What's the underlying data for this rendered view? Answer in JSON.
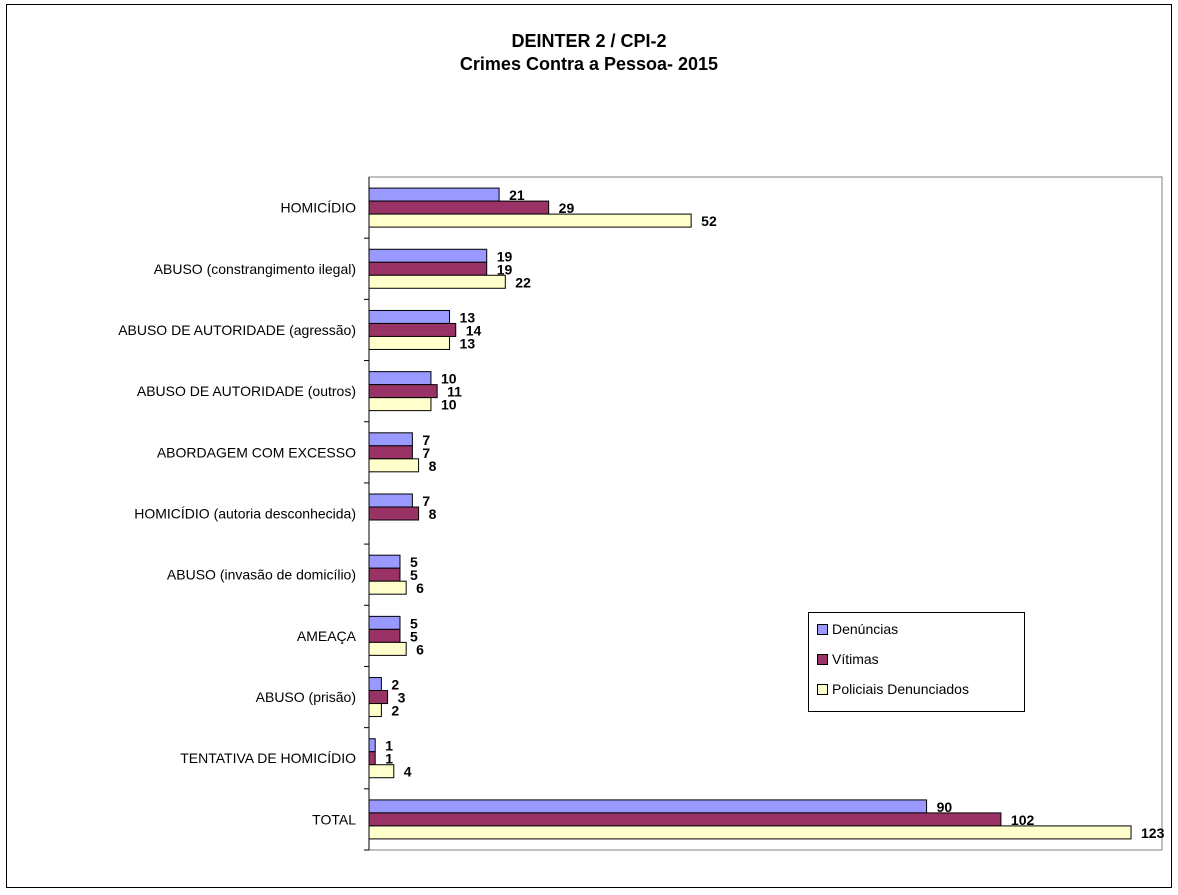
{
  "chart_data": {
    "type": "bar",
    "orientation": "horizontal",
    "title": "DEINTER 2 / CPI-2",
    "subtitle": "Crimes Contra a Pessoa- 2015",
    "categories": [
      "HOMICÍDIO",
      "ABUSO (constrangimento ilegal)",
      "ABUSO DE AUTORIDADE (agressão)",
      "ABUSO DE AUTORIDADE (outros)",
      "ABORDAGEM COM EXCESSO",
      "HOMICÍDIO (autoria desconhecida)",
      "ABUSO (invasão de domicílio)",
      "AMEAÇA",
      "ABUSO (prisão)",
      "TENTATIVA DE HOMICÍDIO",
      "TOTAL"
    ],
    "series": [
      {
        "name": "Denúncias",
        "color": "#9999ff",
        "values": [
          21,
          19,
          13,
          10,
          7,
          7,
          5,
          5,
          2,
          1,
          90
        ]
      },
      {
        "name": "Vítimas",
        "color": "#993366",
        "values": [
          29,
          19,
          14,
          11,
          7,
          8,
          5,
          5,
          3,
          1,
          102
        ]
      },
      {
        "name": "Policiais Denunciados",
        "color": "#ffffcc",
        "values": [
          52,
          22,
          13,
          10,
          8,
          null,
          6,
          6,
          2,
          4,
          123
        ]
      }
    ],
    "xlim": [
      0,
      128
    ],
    "grid": false,
    "legend_position": "right"
  }
}
